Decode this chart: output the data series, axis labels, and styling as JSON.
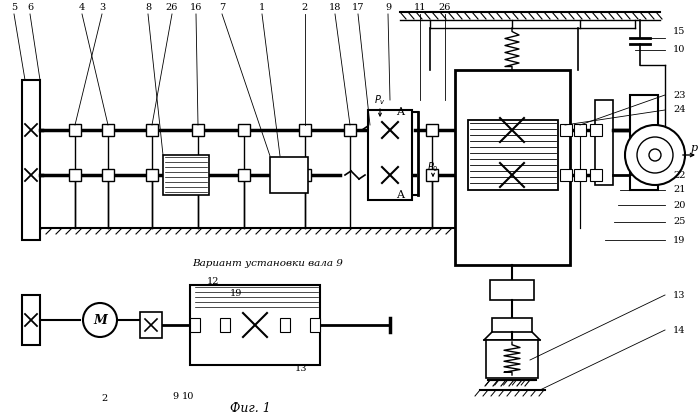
{
  "title": "Фиг. 1",
  "subtitle": "Вариант установки вала 9",
  "bg_color": "#ffffff",
  "lc": "#000000",
  "fig_width": 6.99,
  "fig_height": 4.15,
  "top_labels": [
    [
      14,
      8,
      "5"
    ],
    [
      30,
      8,
      "6"
    ],
    [
      82,
      8,
      "4"
    ],
    [
      102,
      8,
      "3"
    ],
    [
      148,
      8,
      "8"
    ],
    [
      172,
      8,
      "26"
    ],
    [
      196,
      8,
      "16"
    ],
    [
      222,
      8,
      "7"
    ],
    [
      262,
      8,
      "1"
    ],
    [
      305,
      8,
      "2"
    ],
    [
      335,
      8,
      "18"
    ],
    [
      358,
      8,
      "17"
    ],
    [
      388,
      8,
      "9"
    ],
    [
      420,
      8,
      "11"
    ],
    [
      445,
      8,
      "26"
    ]
  ],
  "right_labels": [
    [
      673,
      32,
      "15"
    ],
    [
      673,
      50,
      "10"
    ],
    [
      673,
      95,
      "23"
    ],
    [
      673,
      110,
      "24"
    ],
    [
      673,
      175,
      "22"
    ],
    [
      673,
      190,
      "21"
    ],
    [
      673,
      205,
      "20"
    ],
    [
      673,
      222,
      "25"
    ],
    [
      673,
      240,
      "19"
    ],
    [
      673,
      295,
      "13"
    ],
    [
      673,
      330,
      "14"
    ]
  ]
}
